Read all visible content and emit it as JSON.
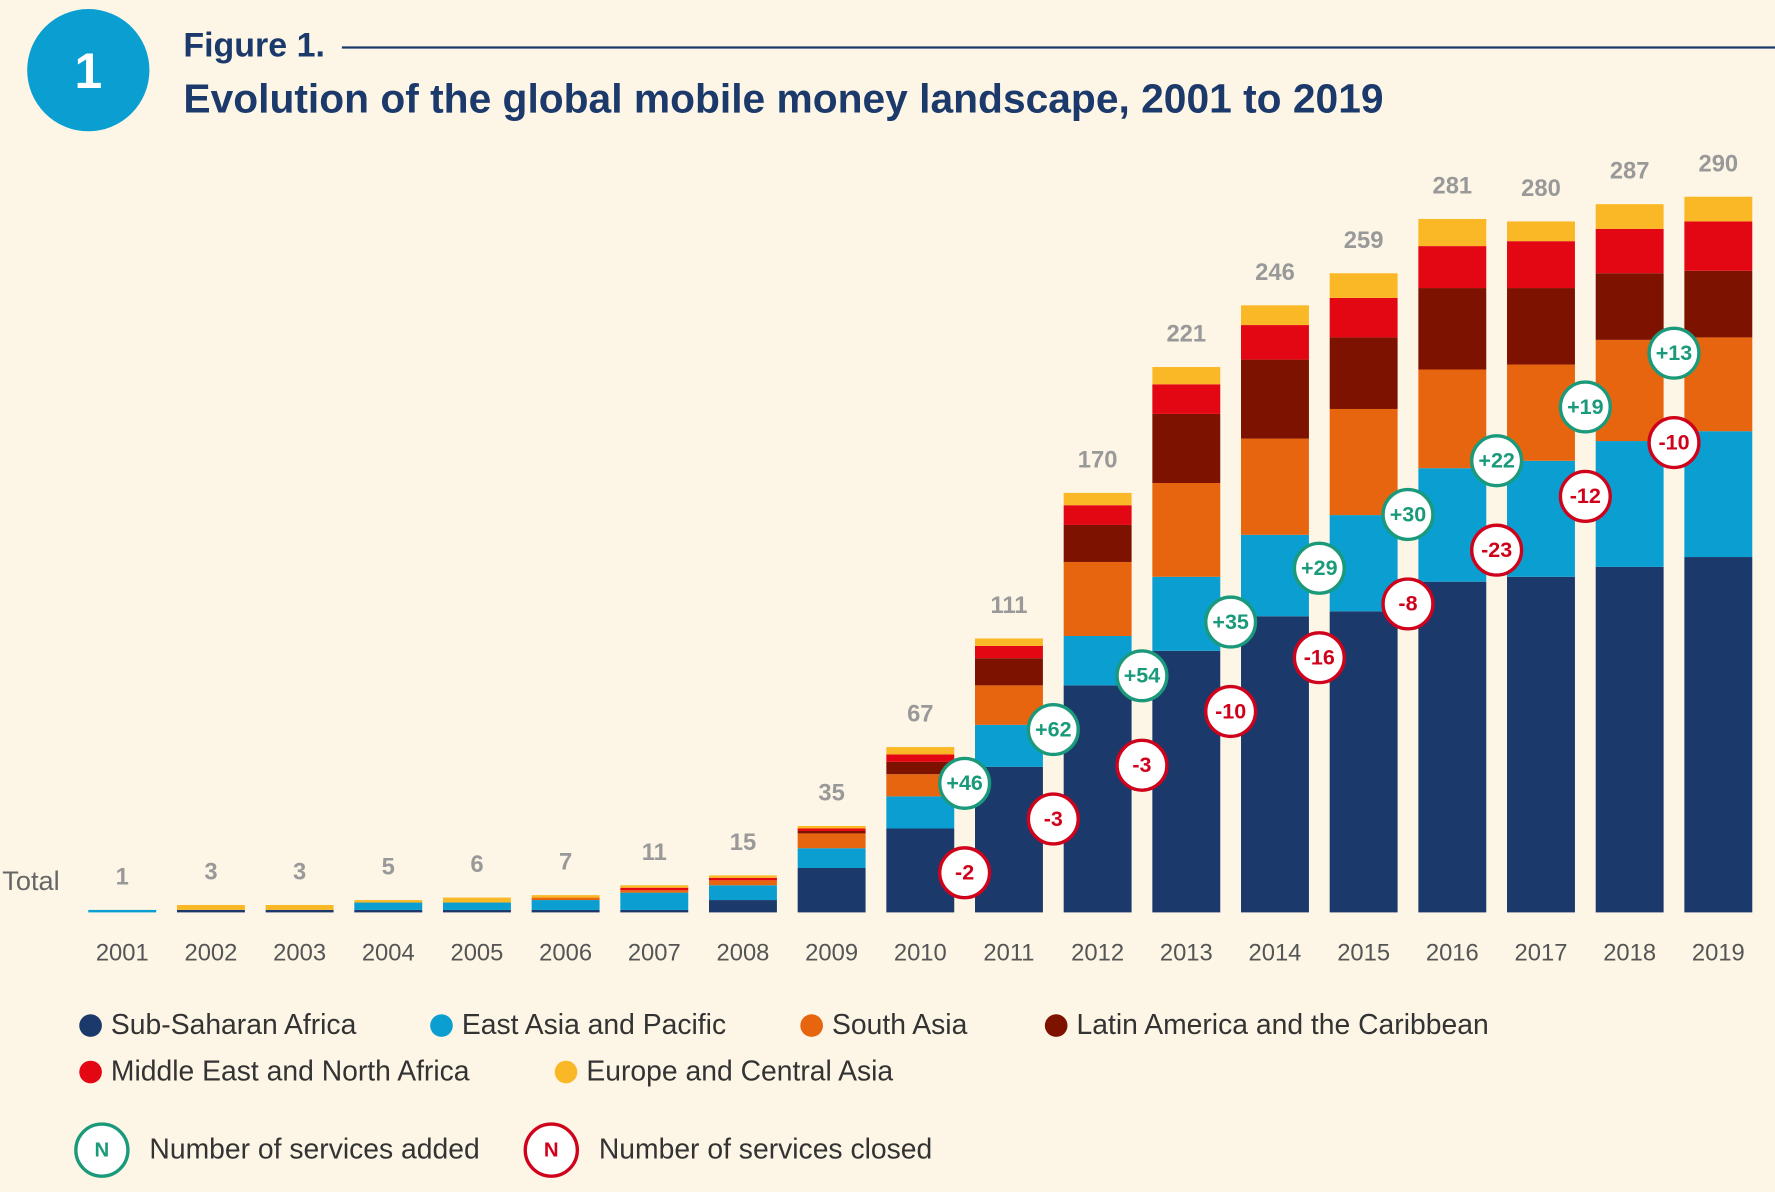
{
  "badge": "1",
  "chart_data": {
    "type": "bar",
    "stacked": true,
    "figure_label": "Figure 1.",
    "title": "Evolution of the global mobile money landscape, 2001 to 2019",
    "totals_label": "Total",
    "categories": [
      "2001",
      "2002",
      "2003",
      "2004",
      "2005",
      "2006",
      "2007",
      "2008",
      "2009",
      "2010",
      "2011",
      "2012",
      "2013",
      "2014",
      "2015",
      "2016",
      "2017",
      "2018",
      "2019"
    ],
    "totals": [
      1,
      3,
      3,
      5,
      6,
      7,
      11,
      15,
      35,
      67,
      111,
      170,
      221,
      246,
      259,
      281,
      280,
      287,
      290
    ],
    "series": [
      {
        "name": "Sub-Saharan Africa",
        "color": "#1b3a6b",
        "values": [
          0,
          1,
          1,
          1,
          1,
          1,
          1,
          5,
          18,
          34,
          59,
          92,
          106,
          120,
          122,
          134,
          136,
          140,
          144
        ]
      },
      {
        "name": "East Asia and Pacific",
        "color": "#0a9fd0",
        "values": [
          1,
          0,
          0,
          3,
          3,
          4,
          7,
          6,
          8,
          13,
          17,
          20,
          30,
          33,
          39,
          46,
          47,
          51,
          51
        ]
      },
      {
        "name": "South Asia",
        "color": "#e8650f",
        "values": [
          0,
          0,
          0,
          0,
          0,
          1,
          1,
          2,
          6,
          9,
          16,
          30,
          38,
          39,
          43,
          40,
          39,
          41,
          38
        ]
      },
      {
        "name": "Latin America and the Caribbean",
        "color": "#7d1200",
        "values": [
          0,
          0,
          0,
          0,
          0,
          0,
          0,
          0,
          1,
          5,
          11,
          15,
          28,
          32,
          29,
          33,
          31,
          27,
          27
        ]
      },
      {
        "name": "Middle East and North Africa",
        "color": "#e30613",
        "values": [
          0,
          0,
          0,
          0,
          0,
          0,
          1,
          1,
          1,
          3,
          5,
          8,
          12,
          14,
          16,
          17,
          19,
          18,
          20
        ]
      },
      {
        "name": "Europe and Central Asia",
        "color": "#fbb826",
        "values": [
          0,
          2,
          2,
          1,
          2,
          1,
          1,
          1,
          1,
          3,
          3,
          5,
          7,
          8,
          10,
          11,
          8,
          10,
          10
        ]
      }
    ],
    "added": {
      "name": "Number of services added",
      "symbol": "N",
      "color": "#1a9a7a",
      "categories": [
        "2011",
        "2012",
        "2013",
        "2014",
        "2015",
        "2016",
        "2017",
        "2018",
        "2019"
      ],
      "values": [
        46,
        62,
        54,
        35,
        29,
        30,
        22,
        19,
        13
      ],
      "value_labels": [
        "+46",
        "+62",
        "+54",
        "+35",
        "+29",
        "+30",
        "+22",
        "+19",
        "+13"
      ]
    },
    "closed": {
      "name": "Number of services closed",
      "symbol": "N",
      "color": "#d0021b",
      "categories": [
        "2011",
        "2012",
        "2013",
        "2014",
        "2015",
        "2016",
        "2017",
        "2018",
        "2019"
      ],
      "values": [
        -2,
        -3,
        -3,
        -10,
        -16,
        -8,
        -23,
        -12,
        -10
      ]
    }
  }
}
